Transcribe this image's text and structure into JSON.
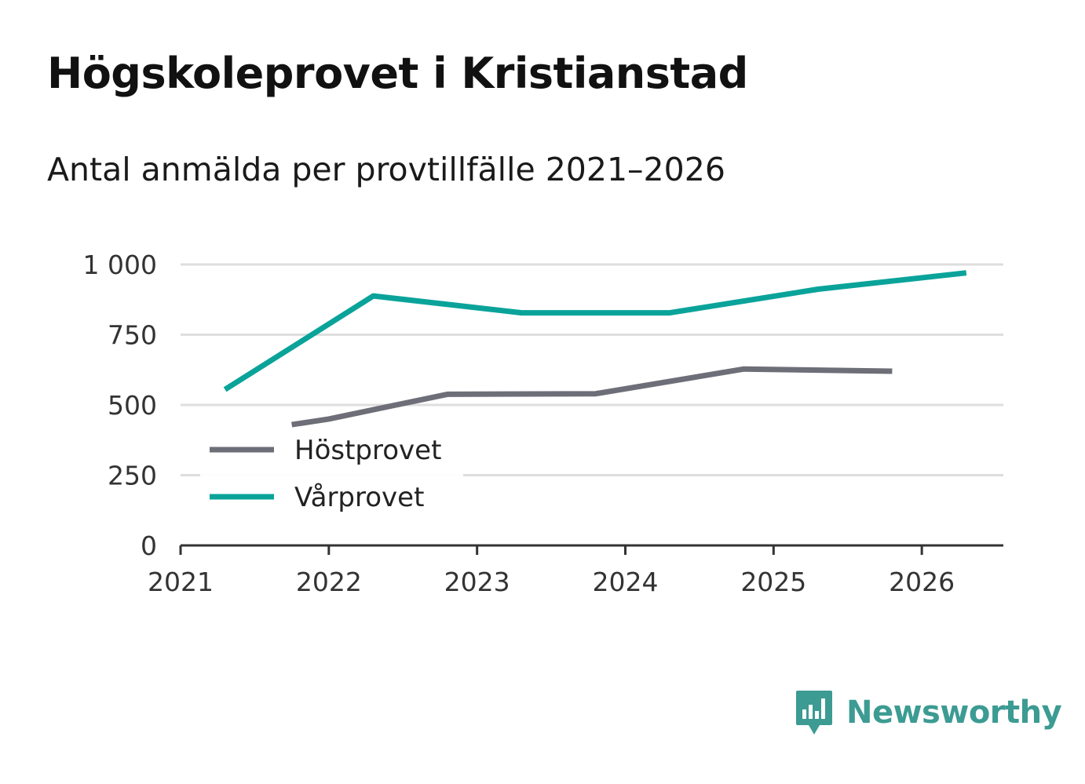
{
  "title": "Högskoleprovet i Kristianstad",
  "subtitle": "Antal anmälda per provtillfälle 2021–2026",
  "chart_data": {
    "type": "line",
    "xlim": [
      2021,
      2026.55
    ],
    "ylim": [
      0,
      1000
    ],
    "x_ticks": [
      2021,
      2022,
      2023,
      2024,
      2025,
      2026
    ],
    "x_tick_labels": [
      "2021",
      "2022",
      "2023",
      "2024",
      "2025",
      "2026"
    ],
    "y_ticks": [
      0,
      250,
      500,
      750,
      1000
    ],
    "y_tick_labels": [
      "0",
      "250",
      "500",
      "750",
      "1 000"
    ],
    "grid": true,
    "legend_position": "lower-left",
    "series": [
      {
        "name": "Höstprovet",
        "color": "#6e6e78",
        "x": [
          2021.75,
          2022.0,
          2022.8,
          2023.8,
          2024.8,
          2025.8
        ],
        "y": [
          430,
          450,
          538,
          540,
          628,
          620
        ]
      },
      {
        "name": "Vårprovet",
        "color": "#0aa39a",
        "x": [
          2021.3,
          2022.3,
          2023.3,
          2024.3,
          2025.3,
          2026.3
        ],
        "y": [
          555,
          888,
          828,
          828,
          912,
          970
        ]
      }
    ]
  },
  "brand": {
    "name": "Newsworthy",
    "color": "#3c9b92",
    "icon": "newsworthy-logo-icon"
  }
}
